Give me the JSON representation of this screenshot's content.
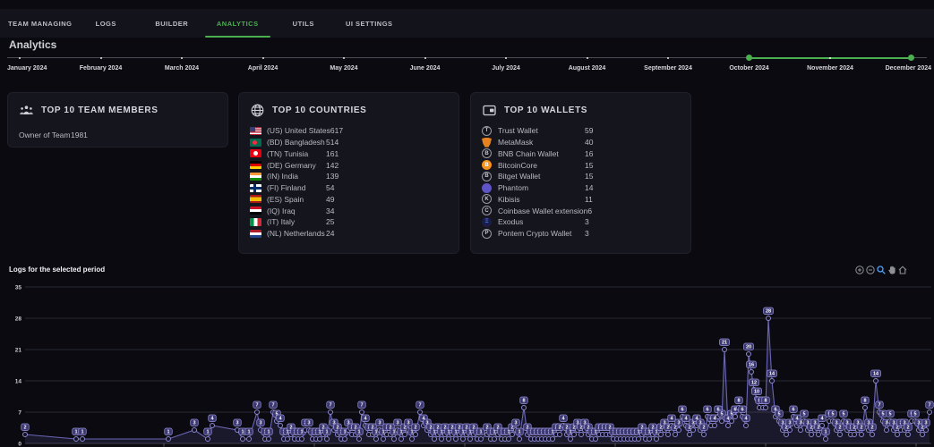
{
  "nav": {
    "tabs": [
      {
        "label": "TEAM MANAGING",
        "active": false
      },
      {
        "label": "LOGS",
        "active": false
      },
      {
        "label": "BUILDER",
        "active": false
      },
      {
        "label": "ANALYTICS",
        "active": true
      },
      {
        "label": "UTILS",
        "active": false
      },
      {
        "label": "UI SETTINGS",
        "active": false
      }
    ],
    "active_color": "#4caf50"
  },
  "page_title": "Analytics",
  "timeline": {
    "months": [
      "January 2024",
      "February 2024",
      "March 2024",
      "April 2024",
      "May 2024",
      "June 2024",
      "July 2024",
      "August 2024",
      "September 2024",
      "October 2024",
      "November 2024",
      "December 2024"
    ],
    "selected_start": "October 2024",
    "selected_end": "December 2024",
    "accent": "#4caf50"
  },
  "cards": {
    "team_members": {
      "title": "TOP 10 TEAM MEMBERS",
      "icon": "team-group-icon",
      "rows": [
        {
          "label": "Owner of Team",
          "value": "1981"
        }
      ]
    },
    "countries": {
      "title": "TOP 10 COUNTRIES",
      "icon": "globe-icon",
      "rows": [
        {
          "code": "US",
          "label": "(US) United States",
          "value": "617"
        },
        {
          "code": "BD",
          "label": "(BD) Bangladesh",
          "value": "514"
        },
        {
          "code": "TN",
          "label": "(TN) Tunisia",
          "value": "161"
        },
        {
          "code": "DE",
          "label": "(DE) Germany",
          "value": "142"
        },
        {
          "code": "IN",
          "label": "(IN) India",
          "value": "139"
        },
        {
          "code": "FI",
          "label": "(FI) Finland",
          "value": "54"
        },
        {
          "code": "ES",
          "label": "(ES) Spain",
          "value": "49"
        },
        {
          "code": "IQ",
          "label": "(IQ) Iraq",
          "value": "34"
        },
        {
          "code": "IT",
          "label": "(IT) Italy",
          "value": "25"
        },
        {
          "code": "NL",
          "label": "(NL) Netherlands",
          "value": "24"
        }
      ]
    },
    "wallets": {
      "title": "TOP 10 WALLETS",
      "icon": "wallet-icon",
      "rows": [
        {
          "label": "Trust Wallet",
          "value": "59",
          "icon": {
            "kind": "outline",
            "letter": "T"
          }
        },
        {
          "label": "MetaMask",
          "value": "40",
          "icon": {
            "kind": "fox",
            "letter": "",
            "bg": "#e8821e"
          }
        },
        {
          "label": "BNB Chain Wallet",
          "value": "16",
          "icon": {
            "kind": "outline",
            "letter": "B"
          }
        },
        {
          "label": "BitcoinCore",
          "value": "15",
          "icon": {
            "kind": "fill",
            "letter": "B",
            "bg": "#f7931a"
          }
        },
        {
          "label": "Bitget Wallet",
          "value": "15",
          "icon": {
            "kind": "outline",
            "letter": "B"
          }
        },
        {
          "label": "Phantom",
          "value": "14",
          "icon": {
            "kind": "fill",
            "letter": "",
            "bg": "#5f54c7"
          }
        },
        {
          "label": "Kibisis",
          "value": "11",
          "icon": {
            "kind": "outline",
            "letter": "K"
          }
        },
        {
          "label": "Coinbase Wallet extension",
          "value": "6",
          "icon": {
            "kind": "outline",
            "letter": "C"
          }
        },
        {
          "label": "Exodus",
          "value": "3",
          "icon": {
            "kind": "fill",
            "letter": "Ξ",
            "bg": "#1b1d44",
            "fg": "#4a7dff"
          }
        },
        {
          "label": "Pontem Crypto Wallet",
          "value": "3",
          "icon": {
            "kind": "outline",
            "letter": "P"
          }
        }
      ]
    }
  },
  "chart": {
    "title": "Logs for the selected period",
    "toolbar": [
      "zoom-in",
      "zoom-out",
      "box-zoom",
      "pan",
      "home"
    ],
    "toolbar_active": "box-zoom",
    "toolbar_active_color": "#4da3ff"
  },
  "chart_data": {
    "type": "line",
    "title": "Logs for the selected period",
    "xlabel": "",
    "ylabel": "",
    "ylim": [
      0,
      35
    ],
    "yticks": [
      0,
      7,
      14,
      21,
      28,
      35
    ],
    "grid": true,
    "legend": false,
    "marker_labels": true,
    "line_color": "#6a65b5",
    "fill_color": "rgba(110,105,185,0.16)",
    "label_box_color": "#3b3770",
    "x_axis_note": "time axis for selected period October 2024 - December 2024; date tick labels cropped; x given as px offset 0-1012 in plot area",
    "points": [
      [
        0,
        2
      ],
      [
        57,
        1
      ],
      [
        64,
        1
      ],
      [
        160,
        1
      ],
      [
        189,
        3
      ],
      [
        204,
        1
      ],
      [
        209,
        4
      ],
      [
        237,
        3
      ],
      [
        243,
        1
      ],
      [
        250,
        1
      ],
      [
        259,
        7
      ],
      [
        263,
        3
      ],
      [
        268,
        1
      ],
      [
        272,
        1
      ],
      [
        277,
        7
      ],
      [
        281,
        5
      ],
      [
        285,
        4
      ],
      [
        289,
        1
      ],
      [
        293,
        1
      ],
      [
        297,
        2
      ],
      [
        301,
        1
      ],
      [
        305,
        1
      ],
      [
        309,
        1
      ],
      [
        313,
        3
      ],
      [
        317,
        3
      ],
      [
        321,
        1
      ],
      [
        325,
        1
      ],
      [
        329,
        1
      ],
      [
        333,
        2
      ],
      [
        337,
        1
      ],
      [
        341,
        7
      ],
      [
        345,
        3
      ],
      [
        349,
        2
      ],
      [
        353,
        1
      ],
      [
        357,
        1
      ],
      [
        361,
        3
      ],
      [
        365,
        2
      ],
      [
        369,
        2
      ],
      [
        373,
        1
      ],
      [
        376,
        7
      ],
      [
        380,
        4
      ],
      [
        384,
        2
      ],
      [
        388,
        2
      ],
      [
        392,
        1
      ],
      [
        396,
        3
      ],
      [
        400,
        1
      ],
      [
        404,
        2
      ],
      [
        408,
        2
      ],
      [
        412,
        1
      ],
      [
        416,
        3
      ],
      [
        420,
        1
      ],
      [
        424,
        2
      ],
      [
        428,
        3
      ],
      [
        432,
        1
      ],
      [
        436,
        2
      ],
      [
        441,
        7
      ],
      [
        445,
        4
      ],
      [
        449,
        3
      ],
      [
        453,
        2
      ],
      [
        457,
        1
      ],
      [
        461,
        2
      ],
      [
        465,
        1
      ],
      [
        469,
        2
      ],
      [
        473,
        1
      ],
      [
        477,
        2
      ],
      [
        481,
        1
      ],
      [
        485,
        2
      ],
      [
        489,
        1
      ],
      [
        493,
        2
      ],
      [
        497,
        1
      ],
      [
        501,
        2
      ],
      [
        505,
        1
      ],
      [
        509,
        1
      ],
      [
        516,
        2
      ],
      [
        520,
        1
      ],
      [
        524,
        1
      ],
      [
        528,
        2
      ],
      [
        532,
        1
      ],
      [
        536,
        1
      ],
      [
        540,
        1
      ],
      [
        544,
        2
      ],
      [
        548,
        3
      ],
      [
        552,
        1
      ],
      [
        557,
        8
      ],
      [
        561,
        2
      ],
      [
        565,
        1
      ],
      [
        569,
        1
      ],
      [
        573,
        1
      ],
      [
        577,
        1
      ],
      [
        581,
        1
      ],
      [
        585,
        1
      ],
      [
        589,
        1
      ],
      [
        593,
        2
      ],
      [
        597,
        2
      ],
      [
        601,
        4
      ],
      [
        605,
        2
      ],
      [
        609,
        1
      ],
      [
        613,
        2
      ],
      [
        617,
        3
      ],
      [
        621,
        2
      ],
      [
        625,
        3
      ],
      [
        629,
        2
      ],
      [
        633,
        1
      ],
      [
        637,
        1
      ],
      [
        641,
        2
      ],
      [
        645,
        2
      ],
      [
        649,
        2
      ],
      [
        653,
        2
      ],
      [
        657,
        1
      ],
      [
        661,
        1
      ],
      [
        665,
        1
      ],
      [
        669,
        1
      ],
      [
        673,
        1
      ],
      [
        677,
        1
      ],
      [
        681,
        1
      ],
      [
        685,
        1
      ],
      [
        689,
        2
      ],
      [
        693,
        1
      ],
      [
        697,
        1
      ],
      [
        701,
        2
      ],
      [
        705,
        1
      ],
      [
        710,
        2
      ],
      [
        714,
        3
      ],
      [
        718,
        2
      ],
      [
        722,
        4
      ],
      [
        726,
        2
      ],
      [
        730,
        3
      ],
      [
        734,
        6
      ],
      [
        738,
        4
      ],
      [
        742,
        2
      ],
      [
        746,
        3
      ],
      [
        750,
        4
      ],
      [
        754,
        3
      ],
      [
        758,
        2
      ],
      [
        762,
        6
      ],
      [
        766,
        4
      ],
      [
        770,
        4
      ],
      [
        774,
        6
      ],
      [
        778,
        5
      ],
      [
        781,
        21
      ],
      [
        785,
        4
      ],
      [
        789,
        5
      ],
      [
        793,
        6
      ],
      [
        797,
        8
      ],
      [
        801,
        6
      ],
      [
        805,
        4
      ],
      [
        808,
        20
      ],
      [
        811,
        16
      ],
      [
        814,
        12
      ],
      [
        817,
        10
      ],
      [
        820,
        8
      ],
      [
        824,
        8
      ],
      [
        827,
        8
      ],
      [
        830,
        28
      ],
      [
        834,
        14
      ],
      [
        838,
        6
      ],
      [
        842,
        5
      ],
      [
        846,
        3
      ],
      [
        850,
        2
      ],
      [
        854,
        3
      ],
      [
        858,
        6
      ],
      [
        862,
        4
      ],
      [
        866,
        3
      ],
      [
        870,
        5
      ],
      [
        874,
        3
      ],
      [
        878,
        2
      ],
      [
        882,
        3
      ],
      [
        886,
        2
      ],
      [
        890,
        4
      ],
      [
        894,
        1
      ],
      [
        898,
        5
      ],
      [
        902,
        5
      ],
      [
        906,
        3
      ],
      [
        910,
        2
      ],
      [
        914,
        5
      ],
      [
        918,
        3
      ],
      [
        922,
        2
      ],
      [
        926,
        2
      ],
      [
        930,
        3
      ],
      [
        934,
        2
      ],
      [
        938,
        8
      ],
      [
        942,
        3
      ],
      [
        946,
        2
      ],
      [
        950,
        14
      ],
      [
        954,
        7
      ],
      [
        958,
        5
      ],
      [
        962,
        3
      ],
      [
        966,
        5
      ],
      [
        970,
        3
      ],
      [
        974,
        2
      ],
      [
        978,
        3
      ],
      [
        982,
        3
      ],
      [
        986,
        2
      ],
      [
        990,
        5
      ],
      [
        994,
        5
      ],
      [
        998,
        3
      ],
      [
        1002,
        2
      ],
      [
        1006,
        3
      ],
      [
        1010,
        7
      ]
    ]
  }
}
